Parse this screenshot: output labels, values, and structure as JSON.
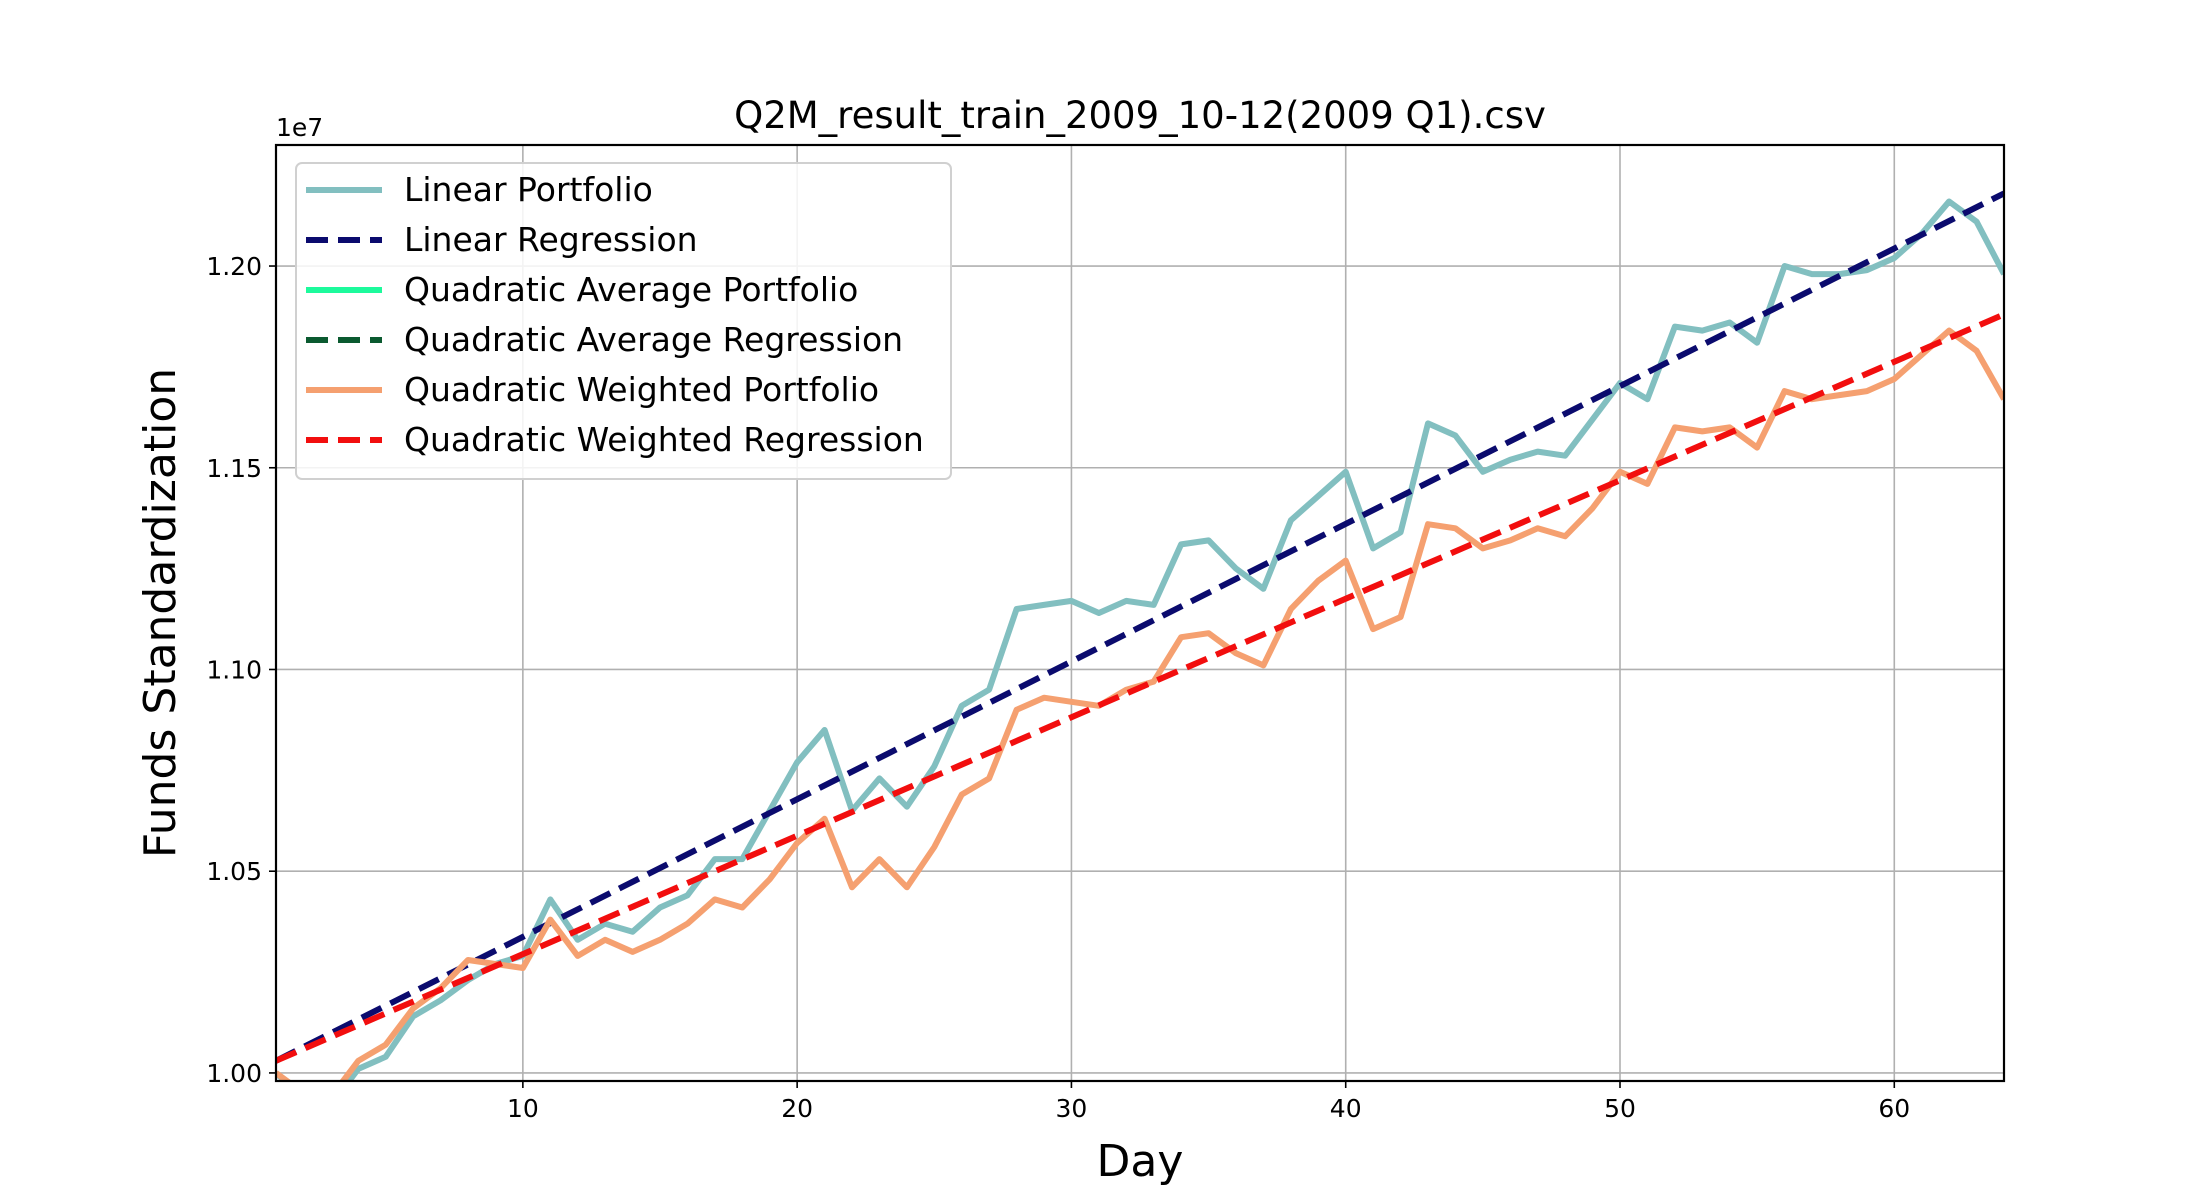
{
  "chart_data": {
    "type": "line",
    "title": "Q2M_result_train_2009_10-12(2009 Q1).csv",
    "xlabel": "Day",
    "ylabel": "Funds Standardization",
    "y_offset_text": "1e7",
    "xlim": [
      1,
      64
    ],
    "ylim": [
      9980000,
      12300000
    ],
    "x_ticks": [
      10,
      20,
      30,
      40,
      50,
      60
    ],
    "x_tick_labels": [
      "10",
      "20",
      "30",
      "40",
      "50",
      "60"
    ],
    "y_ticks": [
      10000000,
      10500000,
      11000000,
      11500000,
      12000000
    ],
    "y_tick_labels": [
      "1.00",
      "1.05",
      "1.10",
      "1.15",
      "1.20"
    ],
    "grid": true,
    "legend_position": "top-left",
    "series": [
      {
        "name": "Linear Portfolio",
        "color": "#82bfc0",
        "style": "solid",
        "x": [
          1,
          2,
          3,
          4,
          5,
          6,
          7,
          8,
          9,
          10,
          11,
          12,
          13,
          14,
          15,
          16,
          17,
          18,
          19,
          20,
          21,
          22,
          23,
          24,
          25,
          26,
          27,
          28,
          29,
          30,
          31,
          32,
          33,
          34,
          35,
          36,
          37,
          38,
          39,
          40,
          41,
          42,
          43,
          44,
          45,
          46,
          47,
          48,
          49,
          50,
          51,
          52,
          53,
          54,
          55,
          56,
          57,
          58,
          59,
          60,
          61,
          62,
          63,
          64
        ],
        "values": [
          10000000,
          9935000,
          9920000,
          10010000,
          10040000,
          10140000,
          10180000,
          10230000,
          10270000,
          10290000,
          10430000,
          10330000,
          10370000,
          10350000,
          10410000,
          10440000,
          10530000,
          10530000,
          10650000,
          10770000,
          10850000,
          10650000,
          10730000,
          10660000,
          10760000,
          10910000,
          10950000,
          11150000,
          11160000,
          11170000,
          11140000,
          11170000,
          11160000,
          11310000,
          11320000,
          11250000,
          11200000,
          11370000,
          11430000,
          11490000,
          11300000,
          11340000,
          11610000,
          11580000,
          11490000,
          11520000,
          11540000,
          11530000,
          11620000,
          11710000,
          11670000,
          11850000,
          11840000,
          11860000,
          11810000,
          12000000,
          11980000,
          11980000,
          11990000,
          12020000,
          12080000,
          12160000,
          12110000,
          11980000
        ]
      },
      {
        "name": "Linear Regression",
        "color": "#0b0b6e",
        "style": "dashed",
        "x": [
          1,
          64
        ],
        "values": [
          10030000,
          12180000
        ]
      },
      {
        "name": "Quadratic Average Portfolio",
        "color": "#1dfa9c",
        "style": "solid",
        "x": [],
        "values": []
      },
      {
        "name": "Quadratic Average Regression",
        "color": "#0b5a30",
        "style": "dashed",
        "x": [],
        "values": []
      },
      {
        "name": "Quadratic Weighted Portfolio",
        "color": "#f5a070",
        "style": "solid",
        "x": [
          1,
          2,
          3,
          4,
          5,
          6,
          7,
          8,
          9,
          10,
          11,
          12,
          13,
          14,
          15,
          16,
          17,
          18,
          19,
          20,
          21,
          22,
          23,
          24,
          25,
          26,
          27,
          28,
          29,
          30,
          31,
          32,
          33,
          34,
          35,
          36,
          37,
          38,
          39,
          40,
          41,
          42,
          43,
          44,
          45,
          46,
          47,
          48,
          49,
          50,
          51,
          52,
          53,
          54,
          55,
          56,
          57,
          58,
          59,
          60,
          61,
          62,
          63,
          64
        ],
        "values": [
          10000000,
          9950000,
          9940000,
          10030000,
          10070000,
          10160000,
          10210000,
          10280000,
          10270000,
          10260000,
          10380000,
          10290000,
          10330000,
          10300000,
          10330000,
          10370000,
          10430000,
          10410000,
          10480000,
          10570000,
          10630000,
          10460000,
          10530000,
          10460000,
          10560000,
          10690000,
          10730000,
          10900000,
          10930000,
          10920000,
          10910000,
          10950000,
          10970000,
          11080000,
          11090000,
          11040000,
          11010000,
          11150000,
          11220000,
          11270000,
          11100000,
          11130000,
          11360000,
          11350000,
          11300000,
          11320000,
          11350000,
          11330000,
          11400000,
          11490000,
          11460000,
          11600000,
          11590000,
          11600000,
          11550000,
          11690000,
          11670000,
          11680000,
          11690000,
          11720000,
          11780000,
          11840000,
          11790000,
          11670000
        ]
      },
      {
        "name": "Quadratic Weighted Regression",
        "color": "#f20e0e",
        "style": "dashed",
        "x": [
          1,
          64
        ],
        "values": [
          10030000,
          11880000
        ]
      }
    ]
  }
}
